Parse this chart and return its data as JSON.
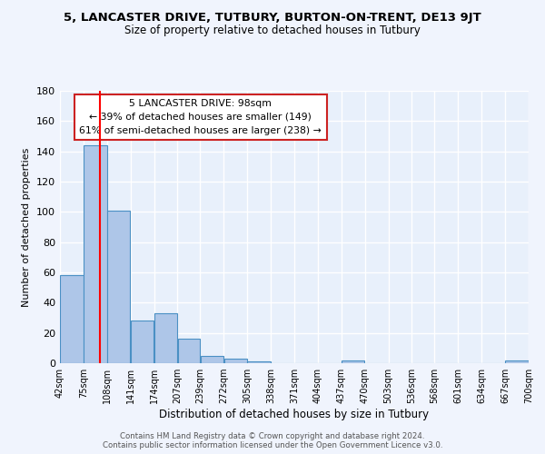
{
  "title_line1": "5, LANCASTER DRIVE, TUTBURY, BURTON-ON-TRENT, DE13 9JT",
  "title_line2": "Size of property relative to detached houses in Tutbury",
  "xlabel": "Distribution of detached houses by size in Tutbury",
  "ylabel": "Number of detached properties",
  "bin_edges": [
    42,
    75,
    108,
    141,
    174,
    207,
    239,
    272,
    305,
    338,
    371,
    404,
    437,
    470,
    503,
    536,
    568,
    601,
    634,
    667,
    700
  ],
  "bin_counts": [
    58,
    144,
    101,
    28,
    33,
    16,
    5,
    3,
    1,
    0,
    0,
    0,
    2,
    0,
    0,
    0,
    0,
    0,
    0,
    2
  ],
  "bar_color": "#aec6e8",
  "bar_edge_color": "#4a90c4",
  "ylim": [
    0,
    180
  ],
  "yticks": [
    0,
    20,
    40,
    60,
    80,
    100,
    120,
    140,
    160,
    180
  ],
  "red_line_x": 98,
  "annotation_title": "5 LANCASTER DRIVE: 98sqm",
  "annotation_line1": "← 39% of detached houses are smaller (149)",
  "annotation_line2": "61% of semi-detached houses are larger (238) →",
  "footer1": "Contains HM Land Registry data © Crown copyright and database right 2024.",
  "footer2": "Contains public sector information licensed under the Open Government Licence v3.0.",
  "background_color": "#e8f0fb",
  "grid_color": "#ffffff",
  "tick_labels": [
    "42sqm",
    "75sqm",
    "108sqm",
    "141sqm",
    "174sqm",
    "207sqm",
    "239sqm",
    "272sqm",
    "305sqm",
    "338sqm",
    "371sqm",
    "404sqm",
    "437sqm",
    "470sqm",
    "503sqm",
    "536sqm",
    "568sqm",
    "601sqm",
    "634sqm",
    "667sqm",
    "700sqm"
  ]
}
